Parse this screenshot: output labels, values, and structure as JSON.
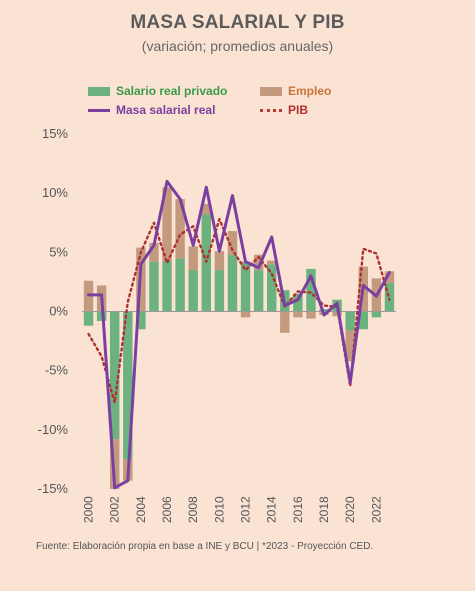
{
  "title": "MASA SALARIAL Y PIB",
  "subtitle": "(variación; promedios anuales)",
  "source": "Fuente: Elaboración propia en base a INE y BCU |  *2023 - Proyección CED.",
  "colors": {
    "salario": "#6cb27f",
    "empleo": "#c49a7e",
    "masa": "#7b3fa0",
    "pib": "#b03030",
    "background": "#fbe3d4"
  },
  "legend": [
    {
      "label": "Salario real privado",
      "color": "#3a9a4a"
    },
    {
      "label": "Empleo",
      "color": "#c8743a"
    },
    {
      "label": "Masa salarial real",
      "color": "#7b3fa0"
    },
    {
      "label": "PIB",
      "color": "#b03030"
    }
  ],
  "chart_data": {
    "type": "bar",
    "title": "MASA SALARIAL Y PIB",
    "subtitle": "(variación; promedios anuales)",
    "x": [
      2000,
      2001,
      2002,
      2003,
      2004,
      2005,
      2006,
      2007,
      2008,
      2009,
      2010,
      2011,
      2012,
      2013,
      2014,
      2015,
      2016,
      2017,
      2018,
      2019,
      2020,
      2021,
      2022,
      2023
    ],
    "x_tick_labels": [
      "2000",
      "2002",
      "2004",
      "2006",
      "2008",
      "2010",
      "2012",
      "2014",
      "2016",
      "2018",
      "2020",
      "2022"
    ],
    "ylim": [
      -15,
      15
    ],
    "y_ticks": [
      -15,
      -10,
      -5,
      0,
      5,
      10,
      15
    ],
    "y_tick_labels": [
      "-15%",
      "-10%",
      "-5%",
      "0%",
      "5%",
      "10%",
      "15%"
    ],
    "series": [
      {
        "name": "Salario real privado",
        "type": "bar",
        "values": [
          -1.2,
          -0.8,
          -10.8,
          -12.5,
          -1.5,
          4.2,
          4.3,
          4.5,
          3.5,
          8.2,
          3.5,
          4.8,
          4.2,
          3.5,
          4.0,
          1.8,
          1.5,
          3.6,
          0.2,
          1.0,
          -1.6,
          -1.5,
          -0.5,
          2.4
        ]
      },
      {
        "name": "Empleo",
        "type": "bar",
        "values": [
          2.6,
          2.2,
          -4.2,
          -1.8,
          5.4,
          1.6,
          6.2,
          5.0,
          2.0,
          0.9,
          1.6,
          2.0,
          -0.5,
          1.3,
          0.3,
          -1.8,
          -0.5,
          -0.6,
          -0.3,
          -0.4,
          -2.6,
          3.8,
          2.8,
          1.0
        ]
      },
      {
        "name": "Masa salarial real",
        "type": "line",
        "values": [
          1.4,
          1.4,
          -14.9,
          -14.3,
          4.0,
          5.6,
          11.0,
          9.5,
          5.6,
          10.5,
          5.1,
          9.8,
          4.2,
          3.7,
          6.3,
          0.5,
          1.0,
          3.0,
          -0.3,
          0.7,
          -6.0,
          2.2,
          1.3,
          3.3
        ]
      },
      {
        "name": "PIB",
        "type": "line",
        "values": [
          -1.9,
          -3.8,
          -7.7,
          0.8,
          5.0,
          7.5,
          4.1,
          6.5,
          7.2,
          4.2,
          7.8,
          5.2,
          3.5,
          4.6,
          3.2,
          0.4,
          1.7,
          1.6,
          0.5,
          0.4,
          -6.3,
          5.3,
          4.9,
          1.0
        ]
      }
    ]
  }
}
